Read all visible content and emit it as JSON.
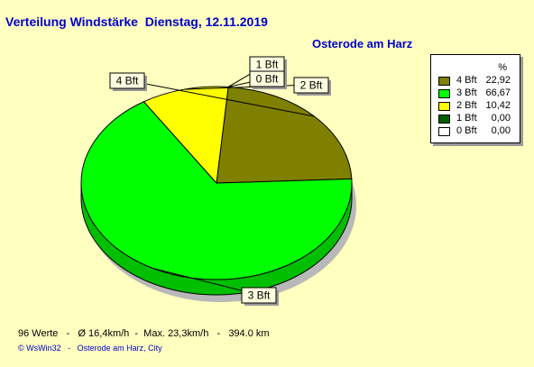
{
  "title": "Verteilung Windstärke  Dienstag, 12.11.2019",
  "location": "Osterode am Harz",
  "chart_data": {
    "type": "pie",
    "unit_header": "%",
    "slices": [
      {
        "label": "4 Bft",
        "value": 22.92,
        "value_text": "22,92",
        "color": "#808000"
      },
      {
        "label": "3 Bft",
        "value": 66.67,
        "value_text": "66,67",
        "color": "#00ff00"
      },
      {
        "label": "2 Bft",
        "value": 10.42,
        "value_text": "10,42",
        "color": "#ffff00"
      },
      {
        "label": "1 Bft",
        "value": 0.0,
        "value_text": "0,00",
        "color": "#006000"
      },
      {
        "label": "0 Bft",
        "value": 0.0,
        "value_text": "0,00",
        "color": "#ffffff"
      }
    ]
  },
  "footer": {
    "stats": "96 Werte   -   Ø 16,4km/h  -  Max. 23,3km/h   -   394.0 km",
    "credit": "© WsWin32   -   Osterode am Harz, City"
  }
}
